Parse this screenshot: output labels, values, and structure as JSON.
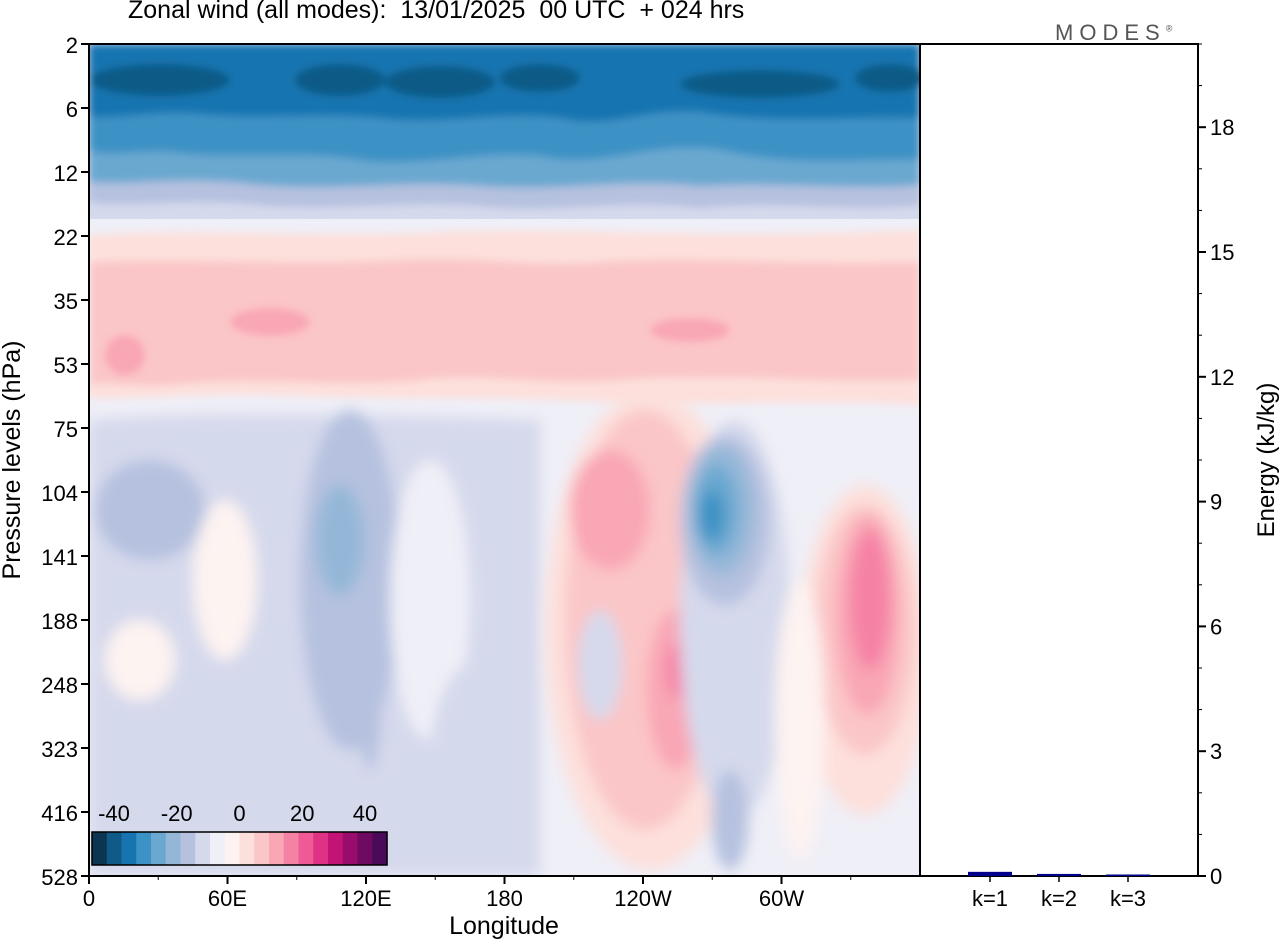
{
  "title": "Zonal wind (all modes):  13/01/2025  00 UTC  + 024 hrs",
  "logo": {
    "text": "MODES",
    "mark": "®"
  },
  "chart_data": [
    {
      "type": "heatmap",
      "title": "Zonal wind (all modes):  13/01/2025  00 UTC  + 024 hrs",
      "xlabel": "Longitude",
      "ylabel": "Pressure levels (hPa)",
      "x_ticks": [
        "0",
        "60E",
        "120E",
        "180",
        "120W",
        "60W"
      ],
      "y_ticks": [
        "2",
        "6",
        "12",
        "22",
        "35",
        "53",
        "75",
        "104",
        "141",
        "188",
        "248",
        "323",
        "416",
        "528"
      ],
      "colorbar": {
        "labels": [
          "-40",
          "-20",
          "0",
          "20",
          "40"
        ],
        "colors": [
          "#0b3550",
          "#0f5a86",
          "#1874b0",
          "#3d92c5",
          "#6aa8d0",
          "#94b7d8",
          "#b5c1df",
          "#d5d9ec",
          "#efeff7",
          "#fdf3f1",
          "#fde0dc",
          "#fbc6c7",
          "#f9a6b5",
          "#f582a5",
          "#ef5a96",
          "#df3284",
          "#c21476",
          "#9a0b6e",
          "#6f0a63",
          "#4a0a59"
        ]
      },
      "features": [
        {
          "lon_range": [
            0,
            360
          ],
          "pressure_range": [
            2,
            12
          ],
          "value_approx": -30
        },
        {
          "lon_range": [
            0,
            360
          ],
          "pressure_range": [
            12,
            20
          ],
          "value_approx": -10
        },
        {
          "lon_range": [
            0,
            360
          ],
          "pressure_range": [
            22,
            60
          ],
          "value_approx": 8
        },
        {
          "lon_range": [
            0,
            150
          ],
          "pressure_range": [
            75,
            528
          ],
          "value_approx": -4
        },
        {
          "lon_range": [
            205,
            255
          ],
          "pressure_range": [
            75,
            416
          ],
          "value_approx": 15
        },
        {
          "lon_range": [
            258,
            290
          ],
          "pressure_range": [
            80,
            200
          ],
          "value_approx": -18
        },
        {
          "lon_range": [
            315,
            355
          ],
          "pressure_range": [
            100,
            416
          ],
          "value_approx": 15
        }
      ]
    },
    {
      "type": "bar",
      "categories": [
        "k=1",
        "k=2",
        "k=3"
      ],
      "values": [
        0.1,
        0.05,
        0.03
      ],
      "ylabel": "Energy (kJ/kg)",
      "ylim": [
        0,
        20
      ],
      "y_ticks": [
        0,
        3,
        6,
        9,
        12,
        15,
        18
      ],
      "bar_color": "#00008b"
    }
  ]
}
